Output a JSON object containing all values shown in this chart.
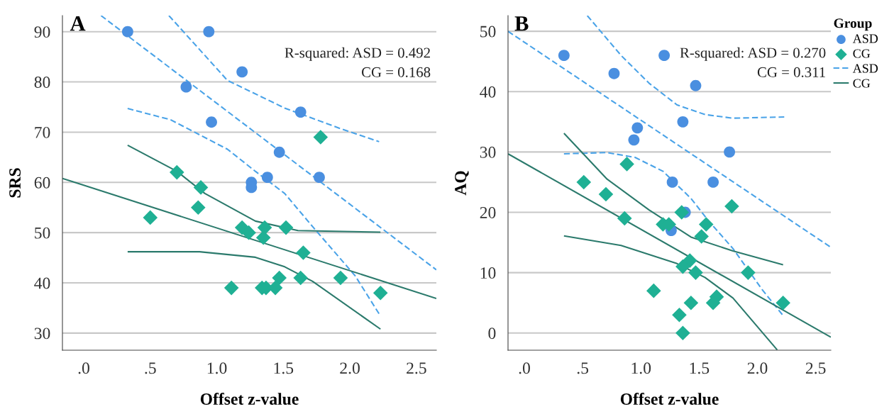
{
  "chart_data": [
    {
      "type": "scatter",
      "title": "A",
      "xlabel": "Offset z-value",
      "ylabel": "SRS",
      "xlim": [
        -0.16,
        2.65
      ],
      "ylim": [
        26.6,
        93.2
      ],
      "xticks": [
        {
          "value": 0,
          "label": ".0"
        },
        {
          "value": 0.5,
          "label": ".5"
        },
        {
          "value": 1,
          "label": "1.0"
        },
        {
          "value": 1.5,
          "label": "1.5"
        },
        {
          "value": 2,
          "label": "2.0"
        },
        {
          "value": 2.5,
          "label": "2.5"
        }
      ],
      "yticks": [
        30,
        40,
        50,
        60,
        70,
        80,
        90
      ],
      "grid": "y",
      "legend": false,
      "annotations": [
        "R-squared: ASD = 0.492",
        "CG = 0.168"
      ],
      "series": [
        {
          "marker": "circle",
          "color": "#4a8fe0",
          "x": [
            0.33,
            0.94,
            1.19,
            0.77,
            0.96,
            1.63,
            1.47,
            1.38,
            1.26,
            1.26,
            1.77
          ],
          "values": [
            90,
            90,
            82,
            79,
            72,
            74,
            66,
            61,
            60,
            59,
            61
          ]
        },
        {
          "marker": "diamond",
          "color": "#1fb094",
          "x": [
            1.78,
            0.7,
            0.88,
            0.86,
            0.5,
            1.19,
            1.24,
            1.36,
            1.35,
            1.52,
            1.65,
            1.47,
            1.63,
            1.93,
            1.11,
            1.34,
            1.37,
            1.44,
            2.23
          ],
          "values": [
            69,
            62,
            59,
            55,
            53,
            51,
            50,
            51,
            49,
            51,
            46,
            41,
            41,
            41,
            39,
            39,
            39,
            39,
            38
          ]
        },
        {
          "type": "line",
          "line_style": "dashed",
          "color": "#4aa3e8",
          "x": [
            0.13,
            2.65
          ],
          "values": [
            93.2,
            42.6
          ]
        },
        {
          "type": "line",
          "line_style": "dashed",
          "color": "#4aa3e8",
          "x": [
            0.64,
            1.08,
            1.51,
            1.93,
            2.22
          ],
          "values": [
            93.2,
            80.3,
            74.8,
            70.7,
            68.1
          ]
        },
        {
          "type": "line",
          "line_style": "dashed",
          "color": "#4aa3e8",
          "x": [
            0.33,
            0.65,
            1.08,
            1.29,
            1.51,
            1.72,
            2.04,
            2.23
          ],
          "values": [
            74.7,
            72.5,
            66.6,
            62.2,
            57.8,
            51.2,
            41.4,
            33.4
          ]
        },
        {
          "type": "line",
          "line_style": "solid",
          "color": "#2b7a6c",
          "x": [
            -0.16,
            2.65
          ],
          "values": [
            60.8,
            36.9
          ]
        },
        {
          "type": "line",
          "line_style": "solid",
          "color": "#2b7a6c",
          "x": [
            0.33,
            0.7,
            0.91,
            1.29,
            1.61,
            2.23
          ],
          "values": [
            67.4,
            62.2,
            57.8,
            52.3,
            50.4,
            50.1
          ]
        },
        {
          "type": "line",
          "line_style": "solid",
          "color": "#2b7a6c",
          "x": [
            0.33,
            0.87,
            1.29,
            1.51,
            1.72,
            2.23
          ],
          "values": [
            46.2,
            46.2,
            45.1,
            43.2,
            40.3,
            30.8
          ]
        }
      ]
    },
    {
      "type": "scatter",
      "title": "B",
      "xlabel": "Offset z-value",
      "ylabel": "AQ",
      "xlim": [
        -0.14,
        2.63
      ],
      "ylim": [
        -2.85,
        52.6
      ],
      "xticks": [
        {
          "value": 0,
          "label": ".0"
        },
        {
          "value": 0.5,
          "label": ".5"
        },
        {
          "value": 1,
          "label": "1.0"
        },
        {
          "value": 1.5,
          "label": "1.5"
        },
        {
          "value": 2,
          "label": "2.0"
        },
        {
          "value": 2.5,
          "label": "2.5"
        }
      ],
      "yticks": [
        0,
        10,
        20,
        30,
        40,
        50
      ],
      "grid": "y",
      "legend": "right",
      "legend_title": "Group",
      "annotations": [
        "R-squared: ASD = 0.270",
        "CG = 0.311"
      ],
      "series": [
        {
          "name": "ASD",
          "marker": "circle",
          "color": "#4a8fe0",
          "x": [
            0.34,
            0.77,
            1.2,
            1.47,
            1.36,
            0.97,
            0.94,
            1.76,
            1.27,
            1.62,
            1.38,
            1.26
          ],
          "values": [
            46,
            43,
            46,
            41,
            35,
            34,
            32,
            30,
            25,
            25,
            20,
            17
          ]
        },
        {
          "name": "CG",
          "marker": "diamond",
          "color": "#1fb094",
          "x": [
            0.88,
            0.51,
            0.7,
            1.78,
            1.35,
            0.86,
            1.19,
            1.24,
            1.56,
            1.52,
            1.42,
            1.36,
            1.47,
            1.92,
            1.11,
            1.65,
            1.62,
            1.43,
            2.22,
            1.33,
            1.36
          ],
          "values": [
            28,
            25,
            23,
            21,
            20,
            19,
            18,
            18,
            18,
            16,
            12,
            11,
            10,
            10,
            7,
            6,
            5,
            5,
            5,
            3,
            0
          ]
        },
        {
          "type": "line",
          "name": "ASD",
          "line_style": "dashed",
          "color": "#4aa3e8",
          "x": [
            -0.14,
            2.63
          ],
          "values": [
            50.0,
            14.2
          ]
        },
        {
          "type": "line",
          "line_style": "dashed",
          "color": "#4aa3e8",
          "x": [
            0.54,
            0.83,
            1.07,
            1.31,
            1.55,
            1.79,
            2.23
          ],
          "values": [
            52.6,
            46.0,
            41.4,
            37.8,
            36.2,
            35.6,
            35.8
          ]
        },
        {
          "type": "line",
          "line_style": "dashed",
          "color": "#4aa3e8",
          "x": [
            0.34,
            0.71,
            0.95,
            1.19,
            1.43,
            1.58,
            1.79,
            2.04,
            2.22
          ],
          "values": [
            29.7,
            29.9,
            29.1,
            26.8,
            22.3,
            18.6,
            14.0,
            7.2,
            2.9
          ]
        },
        {
          "type": "line",
          "name": "CG",
          "line_style": "solid",
          "color": "#2b7a6c",
          "x": [
            -0.14,
            2.63
          ],
          "values": [
            29.7,
            -0.7
          ]
        },
        {
          "type": "line",
          "line_style": "solid",
          "color": "#2b7a6c",
          "x": [
            0.34,
            0.71,
            1.07,
            1.43,
            1.79,
            2.22
          ],
          "values": [
            33.1,
            25.5,
            20.4,
            15.9,
            13.6,
            11.3
          ]
        },
        {
          "type": "line",
          "line_style": "solid",
          "color": "#2b7a6c",
          "x": [
            0.34,
            0.83,
            1.31,
            1.55,
            1.79,
            2.17
          ],
          "values": [
            16.1,
            14.5,
            11.5,
            9.2,
            5.8,
            -2.8
          ]
        }
      ]
    }
  ]
}
